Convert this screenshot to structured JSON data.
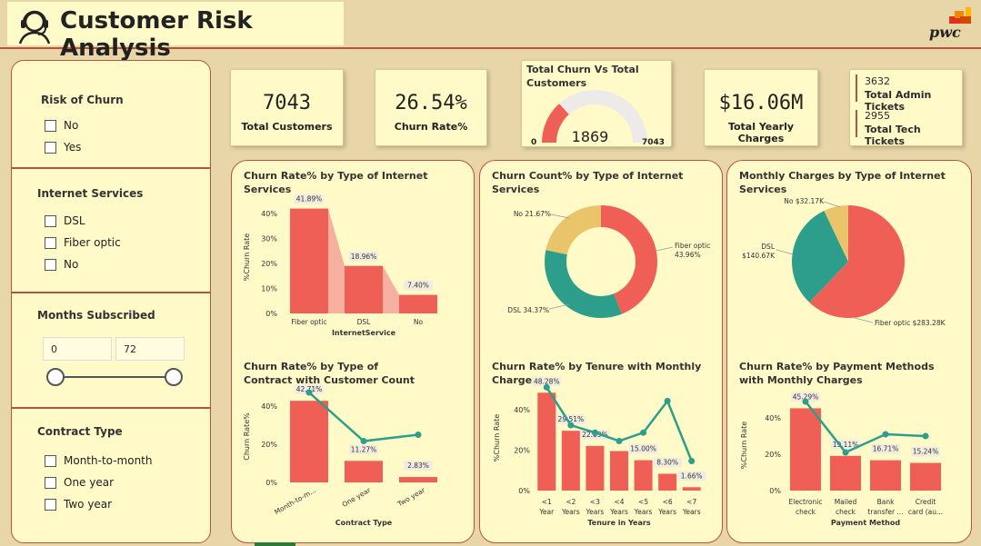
{
  "header": {
    "title": "Customer Risk Analysis",
    "logo_text": "pwc"
  },
  "slicers": {
    "risk": {
      "title": "Risk of Churn",
      "options": [
        "No",
        "Yes"
      ]
    },
    "internet": {
      "title": "Internet Services",
      "options": [
        "DSL",
        "Fiber optic",
        "No"
      ]
    },
    "months": {
      "title": "Months Subscribed",
      "min": "0",
      "max": "72"
    },
    "contract": {
      "title": "Contract Type",
      "options": [
        "Month-to-month",
        "One year",
        "Two year"
      ]
    }
  },
  "kpis": {
    "customers": {
      "value": "7043",
      "label": "Total Customers"
    },
    "churn_rate": {
      "value": "26.54%",
      "label": "Churn Rate%"
    },
    "gauge": {
      "title": "Total Churn Vs Total Customers",
      "value": "1869",
      "min": "0",
      "max": "7043",
      "fraction": 0.2654
    },
    "charges": {
      "value": "$16.06M",
      "label": "Total Yearly Charges"
    },
    "tickets": {
      "admin_value": "3632",
      "admin_label": "Total Admin Tickets",
      "tech_value": "2955",
      "tech_label": "Total Tech Tickets"
    }
  },
  "colors": {
    "red": "#ef5f55",
    "teal": "#2e9e8c",
    "yellow": "#e9c46a",
    "light_red": "#f7b0a0",
    "bg": "#fffac8"
  },
  "chart_data": [
    {
      "type": "bar",
      "title": "Churn Rate% by Type of Internet Services",
      "categories": [
        "Fiber optic",
        "DSL",
        "No"
      ],
      "values": [
        41.89,
        18.96,
        7.4
      ],
      "data_labels": [
        "41.89%",
        "18.96%",
        "7.40%"
      ],
      "xlabel": "InternetService",
      "ylabel": "%Churn Rate",
      "yticks": [
        "0%",
        "10%",
        "20%",
        "30%",
        "40%"
      ],
      "ylim": [
        0,
        45
      ]
    },
    {
      "type": "pie",
      "title": "Churn Count% by Type of Internet Services",
      "donut": true,
      "labels": [
        "Fiber optic",
        "DSL",
        "No"
      ],
      "values": [
        43.96,
        34.37,
        21.67
      ],
      "data_labels": [
        "Fiber optic 43.96%",
        "DSL 34.37%",
        "No 21.67%"
      ]
    },
    {
      "type": "pie",
      "title": "Monthly Charges by Type of Internet Services",
      "labels": [
        "Fiber optic",
        "DSL",
        "No"
      ],
      "values": [
        283.28,
        140.67,
        32.17
      ],
      "data_labels": [
        "Fiber optic $283.28K",
        "DSL $140.67K",
        "No $32.17K"
      ]
    },
    {
      "type": "bar",
      "title": "Churn Rate% by Type of Contract with Customer Count",
      "categories": [
        "Month-to-m...",
        "One year",
        "Two year"
      ],
      "values": [
        42.71,
        11.27,
        2.83
      ],
      "line_values": [
        0.98,
        0.45,
        0.52
      ],
      "data_labels": [
        "42.71%",
        "11.27%",
        "2.83%"
      ],
      "xlabel": "Contract Type",
      "ylabel": "Churn Rate%",
      "yticks": [
        "0%",
        "20%",
        "40%"
      ],
      "ylim": [
        0,
        48
      ]
    },
    {
      "type": "bar",
      "title": "Churn Rate% by Tenure with Monthly Charges",
      "categories": [
        "<1 Year",
        "<2 Years",
        "<3 Years",
        "<4 Years",
        "<5 Years",
        "<6 Years",
        "<7 Years"
      ],
      "values": [
        48.28,
        29.51,
        22.03,
        19.5,
        15.0,
        8.3,
        1.66
      ],
      "line_values": [
        0.98,
        0.62,
        0.55,
        0.47,
        0.55,
        0.85,
        0.28
      ],
      "data_labels": [
        "48.28%",
        "29.51%",
        "22.03%",
        "",
        "15.00%",
        "8.30%",
        "1.66%"
      ],
      "xlabel": "Tenure in Years",
      "ylabel": "%Churn Rate",
      "yticks": [
        "0%",
        "20%",
        "40%"
      ],
      "ylim": [
        0,
        52
      ]
    },
    {
      "type": "bar",
      "title": "Churn Rate% by Payment Methods with Monthly Charges",
      "categories": [
        "Electronic check",
        "Mailed check",
        "Bank transfer ...",
        "Credit card (au..."
      ],
      "values": [
        45.29,
        19.11,
        16.71,
        15.24
      ],
      "line_values": [
        0.98,
        0.42,
        0.62,
        0.6
      ],
      "data_labels": [
        "45.29%",
        "19.11%",
        "16.71%",
        "15.24%"
      ],
      "xlabel": "Payment Method",
      "ylabel": "%Churn Rate",
      "yticks": [
        "0%",
        "20%",
        "40%"
      ],
      "ylim": [
        0,
        50
      ]
    }
  ]
}
